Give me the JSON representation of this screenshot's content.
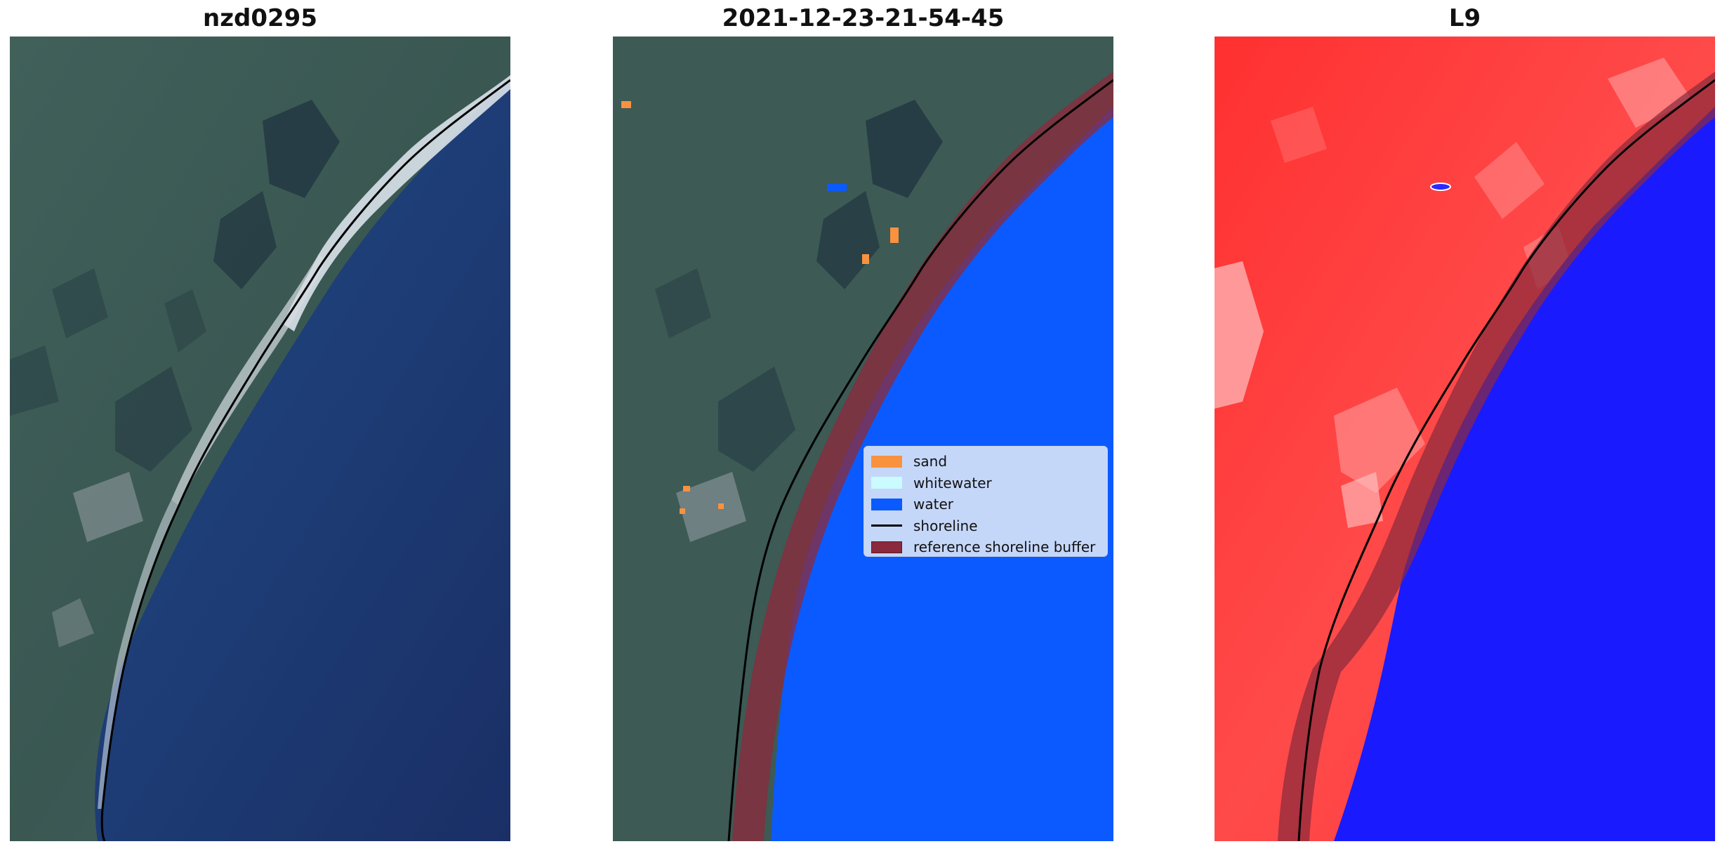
{
  "panels": [
    {
      "title": "nzd0295"
    },
    {
      "title": "2021-12-23-21-54-45"
    },
    {
      "title": "L9"
    }
  ],
  "legend": {
    "items": [
      {
        "label": "sand",
        "color": "#f8923f",
        "kind": "patch"
      },
      {
        "label": "whitewater",
        "color": "#c9fbff",
        "kind": "patch"
      },
      {
        "label": "water",
        "color": "#0a5aff",
        "kind": "patch"
      },
      {
        "label": "shoreline",
        "color": "#000000",
        "kind": "line"
      },
      {
        "label": "reference shoreline buffer",
        "color": "#8b2a3c",
        "kind": "patch"
      }
    ]
  },
  "colors": {
    "land": "#3d5a55",
    "ocean_deep": "#1b3168",
    "ocean_shallow": "#2a5c92",
    "beach": "#dfe6ec",
    "water_class": "#0a5aff",
    "buffer": "#8b2a3c",
    "index_land": "#ff3a3a",
    "index_water": "#1a1aff"
  }
}
